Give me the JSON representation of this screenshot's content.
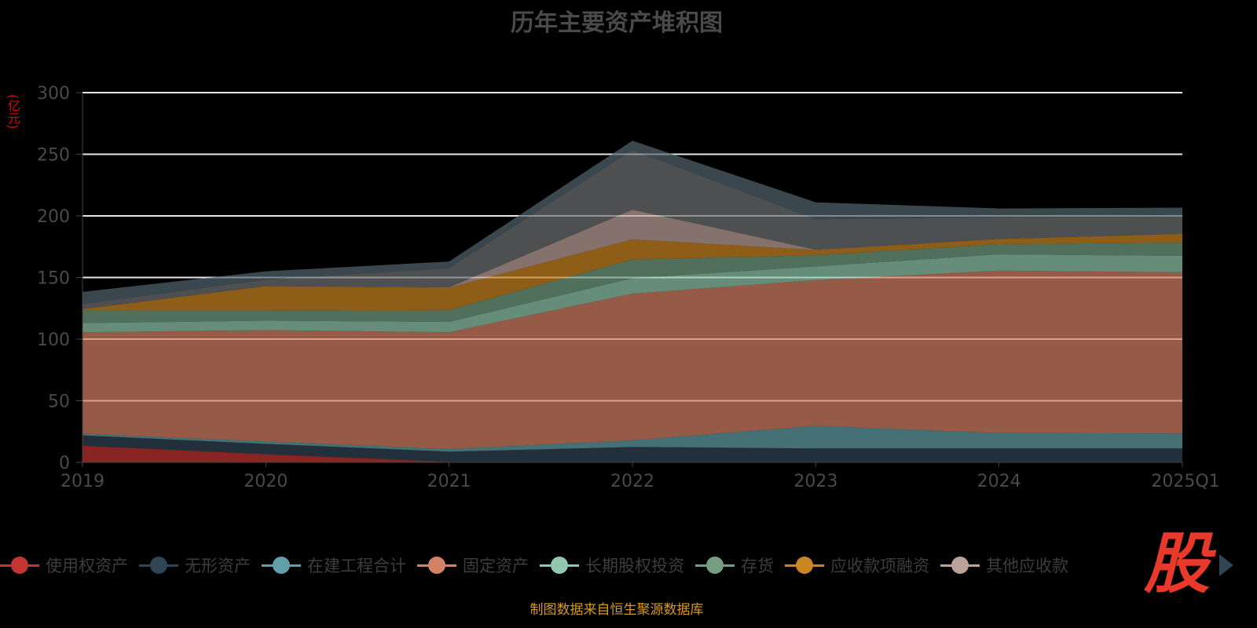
{
  "chart_data": {
    "type": "area",
    "stacked": true,
    "title": "历年主要资产堆积图",
    "ylabel": "(亿元)",
    "xlabel": "",
    "ylim": [
      0,
      300
    ],
    "yticks": [
      "0",
      "50",
      "100",
      "150",
      "200",
      "250",
      "300"
    ],
    "categories": [
      "2019",
      "2020",
      "2021",
      "2022",
      "2023",
      "2024",
      "2025Q1"
    ],
    "grid": true,
    "legend_position": "bottom",
    "series": [
      {
        "name": "使用权资产",
        "color": "#c23531",
        "values": [
          13.5,
          6.7,
          0.4,
          0.3,
          0,
          0,
          0
        ]
      },
      {
        "name": "无形资产",
        "color": "#2f4554",
        "values": [
          8.4,
          8.3,
          8.3,
          12.2,
          11.3,
          11.3,
          11.3
        ]
      },
      {
        "name": "在建工程合计",
        "color": "#61a0a8",
        "values": [
          1.4,
          2.0,
          2.1,
          5.5,
          18.3,
          12.5,
          12.0
        ]
      },
      {
        "name": "固定资产",
        "color": "#d48265",
        "values": [
          82.3,
          90.3,
          94.8,
          118.9,
          118.3,
          131.8,
          130.9
        ]
      },
      {
        "name": "长期股权投资",
        "color": "#91c7ae",
        "values": [
          7.4,
          7.7,
          8.4,
          12.5,
          11.1,
          13.2,
          13.3
        ]
      },
      {
        "name": "存货",
        "color": "#749f83",
        "values": [
          10.3,
          8.3,
          9.7,
          15.2,
          9.1,
          8.3,
          10.8
        ]
      },
      {
        "name": "应收款项融资",
        "color": "#ca8622",
        "values": [
          1.1,
          19.7,
          18.0,
          16.4,
          4.2,
          4.2,
          7.1
        ]
      },
      {
        "name": "其他应收款",
        "color": "#bda29a",
        "values": [
          0,
          0,
          0.3,
          24.0,
          0.2,
          0,
          0
        ]
      },
      {
        "name": null,
        "color": "#6e7074",
        "values": [
          4.1,
          5.3,
          15.7,
          48.5,
          24.8,
          17.7,
          14.0
        ]
      },
      {
        "name": null,
        "color": "#546570",
        "values": [
          9.8,
          6.7,
          5.3,
          7.5,
          13.7,
          7.0,
          7.3
        ]
      }
    ]
  },
  "footer": "制图数据来自恒生聚源数据库",
  "logo_text": "股",
  "icons": {
    "pager": "triangle-right-icon"
  }
}
